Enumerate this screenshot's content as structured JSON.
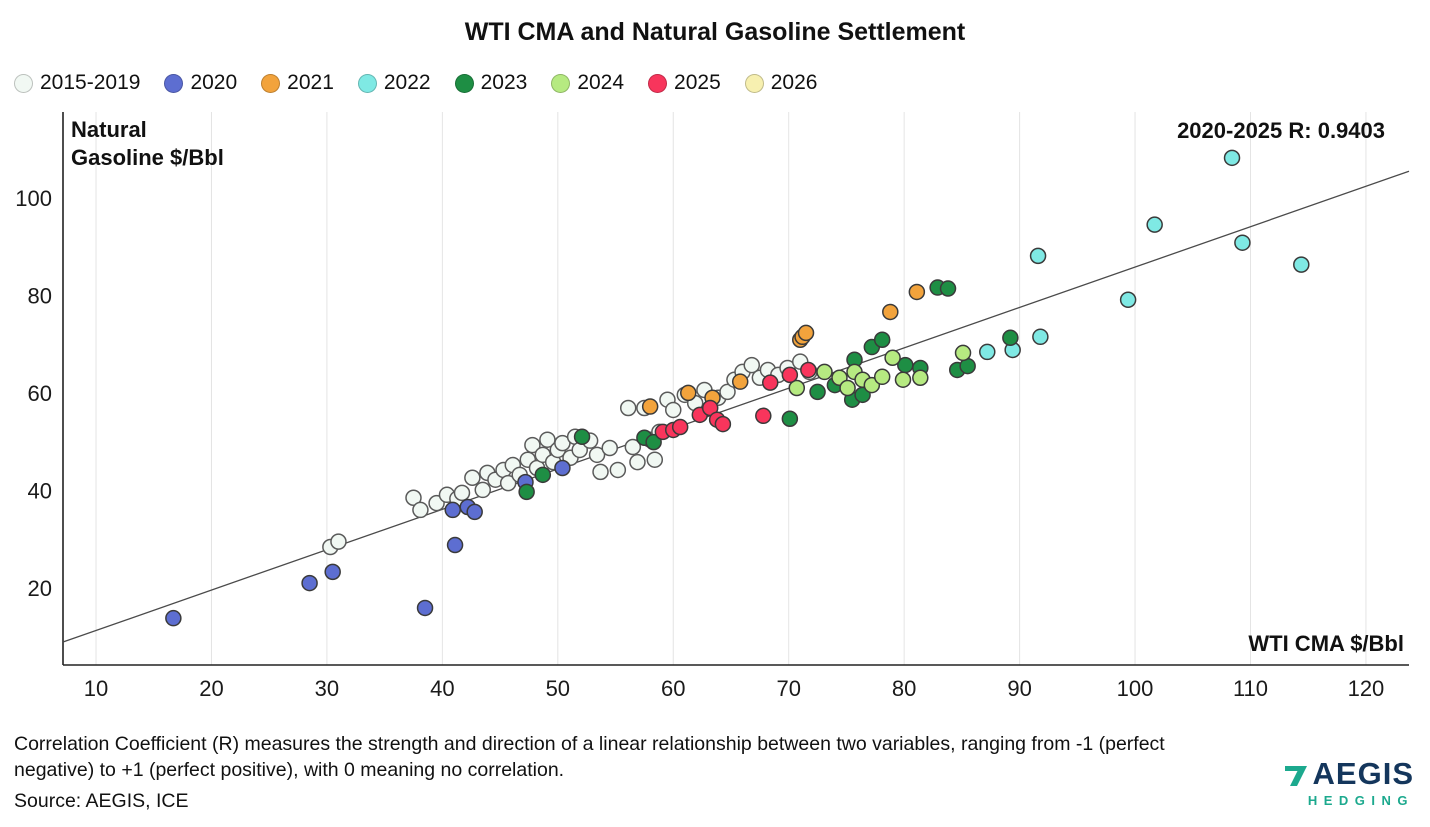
{
  "header": {
    "title": "WTI CMA and Natural Gasoline Settlement"
  },
  "annotation": "2020-2025 R: 0.9403",
  "ylabel_text": "Natural\nGasoline $/Bbl",
  "xlabel_text": "WTI CMA $/Bbl",
  "footnote": "Correlation Coefficient (R) measures the strength and direction of a linear relationship between two variables, ranging from -1 (perfect negative) to +1 (perfect positive), with 0 meaning no correlation.",
  "source": "Source: AEGIS, ICE",
  "logo": {
    "name": "AEGIS",
    "sub": "HEDGING",
    "navy": "#14365c",
    "teal": "#1ca98e"
  },
  "chart_data": {
    "type": "scatter",
    "title": "WTI CMA and Natural Gasoline Settlement",
    "xlabel": "WTI CMA $/Bbl",
    "ylabel": "Natural Gasoline $/Bbl",
    "annotation": "2020-2025 R: 0.9403",
    "x_ticks": [
      10,
      20,
      30,
      40,
      50,
      60,
      70,
      80,
      90,
      100,
      110,
      120
    ],
    "y_ticks": [
      20,
      40,
      60,
      80,
      100
    ],
    "xlim": [
      7.14,
      123.73
    ],
    "ylim": [
      4.2,
      117.6
    ],
    "grid": "vertical",
    "legend_position": "top-left",
    "marker_radius": 7.5,
    "trendline": {
      "slope": 0.828,
      "intercept": 3.0,
      "color": "#4a4a4a"
    },
    "series": [
      {
        "name": "2015-2019",
        "color": "#f1f8f3",
        "stroke": "#5a5a5a",
        "points": [
          [
            30.3,
            28.4
          ],
          [
            31,
            29.5
          ],
          [
            37.5,
            38.5
          ],
          [
            38.1,
            36
          ],
          [
            39.5,
            37.4
          ],
          [
            40.4,
            39.1
          ],
          [
            41.3,
            38.3
          ],
          [
            41.7,
            39.5
          ],
          [
            42.6,
            42.6
          ],
          [
            43.5,
            40.1
          ],
          [
            43.9,
            43.6
          ],
          [
            44.6,
            42.2
          ],
          [
            45.3,
            44.2
          ],
          [
            45.7,
            41.5
          ],
          [
            46.1,
            45.2
          ],
          [
            46.7,
            43.2
          ],
          [
            47.4,
            46.3
          ],
          [
            47.8,
            49.3
          ],
          [
            48.2,
            44.6
          ],
          [
            48.7,
            47.3
          ],
          [
            49.1,
            50.4
          ],
          [
            49.6,
            45.8
          ],
          [
            50,
            48.3
          ],
          [
            50.4,
            49.7
          ],
          [
            51.1,
            46.7
          ],
          [
            51.5,
            51
          ],
          [
            51.9,
            48.3
          ],
          [
            52.8,
            50.2
          ],
          [
            53.4,
            47.3
          ],
          [
            53.7,
            43.8
          ],
          [
            54.5,
            48.7
          ],
          [
            55.2,
            44.2
          ],
          [
            56.1,
            56.9
          ],
          [
            56.5,
            48.9
          ],
          [
            56.9,
            45.8
          ],
          [
            57.5,
            56.9
          ],
          [
            58,
            50.4
          ],
          [
            58.4,
            46.3
          ],
          [
            58.8,
            52
          ],
          [
            59.5,
            58.6
          ],
          [
            60,
            56.5
          ],
          [
            61,
            59.6
          ],
          [
            61.9,
            57.9
          ],
          [
            62.7,
            60.6
          ],
          [
            63.9,
            59
          ],
          [
            64.7,
            60.2
          ],
          [
            65.3,
            62.7
          ],
          [
            66,
            64.3
          ],
          [
            66.8,
            65.7
          ],
          [
            67.5,
            63.1
          ],
          [
            68.2,
            64.7
          ],
          [
            69.1,
            63.7
          ],
          [
            69.9,
            65.1
          ],
          [
            71,
            66.4
          ],
          [
            71.8,
            64.3
          ]
        ]
      },
      {
        "name": "2020",
        "color": "#5d6ed1",
        "stroke": "#3a3a3a",
        "points": [
          [
            16.7,
            13.8
          ],
          [
            28.5,
            21
          ],
          [
            30.5,
            23.3
          ],
          [
            38.5,
            15.9
          ],
          [
            40.9,
            36
          ],
          [
            41.1,
            28.8
          ],
          [
            42.2,
            36.6
          ],
          [
            42.8,
            35.6
          ],
          [
            47.2,
            41.7
          ],
          [
            50.4,
            44.6
          ]
        ]
      },
      {
        "name": "2021",
        "color": "#f2a33c",
        "stroke": "#3a3a3a",
        "points": [
          [
            58,
            57.2
          ],
          [
            61.3,
            60
          ],
          [
            63.4,
            59
          ],
          [
            65.8,
            62.3
          ],
          [
            71,
            70.9
          ],
          [
            71.2,
            71.5
          ],
          [
            71.5,
            72.3
          ],
          [
            78.8,
            76.6
          ],
          [
            81.1,
            80.7
          ]
        ]
      },
      {
        "name": "2022",
        "color": "#7fe9e4",
        "stroke": "#3a3a3a",
        "points": [
          [
            87.2,
            68.4
          ],
          [
            89.4,
            68.8
          ],
          [
            91.8,
            71.5
          ],
          [
            91.6,
            88.1
          ],
          [
            99.4,
            79.1
          ],
          [
            101.7,
            94.5
          ],
          [
            108.4,
            108.2
          ],
          [
            109.3,
            90.8
          ],
          [
            114.4,
            86.3
          ]
        ]
      },
      {
        "name": "2023",
        "color": "#1e8e44",
        "stroke": "#3a3a3a",
        "points": [
          [
            47.3,
            39.7
          ],
          [
            48.7,
            43.2
          ],
          [
            52.1,
            51
          ],
          [
            57.5,
            50.8
          ],
          [
            58.3,
            49.9
          ],
          [
            70.1,
            54.7
          ],
          [
            72.5,
            60.2
          ],
          [
            74,
            61.6
          ],
          [
            75.5,
            58.6
          ],
          [
            76.4,
            59.6
          ],
          [
            75.7,
            66.8
          ],
          [
            77.2,
            69.4
          ],
          [
            78.1,
            70.9
          ],
          [
            80.1,
            65.7
          ],
          [
            81.4,
            65.1
          ],
          [
            82.9,
            81.6
          ],
          [
            83.8,
            81.4
          ],
          [
            84.6,
            64.7
          ],
          [
            85.5,
            65.5
          ],
          [
            89.2,
            71.3
          ]
        ]
      },
      {
        "name": "2024",
        "color": "#b6ea81",
        "stroke": "#3a3a3a",
        "points": [
          [
            70.7,
            61
          ],
          [
            73.1,
            64.3
          ],
          [
            74.4,
            63.1
          ],
          [
            75.1,
            61
          ],
          [
            75.7,
            64.3
          ],
          [
            76.4,
            62.7
          ],
          [
            77.2,
            61.6
          ],
          [
            78.1,
            63.3
          ],
          [
            79,
            67.2
          ],
          [
            79.9,
            62.7
          ],
          [
            81.4,
            63.1
          ],
          [
            85.1,
            68.2
          ]
        ]
      },
      {
        "name": "2025",
        "color": "#f8355c",
        "stroke": "#3a3a3a",
        "points": [
          [
            59.1,
            52
          ],
          [
            60,
            52.4
          ],
          [
            60.6,
            53
          ],
          [
            62.3,
            55.5
          ],
          [
            63.2,
            56.9
          ],
          [
            63.8,
            54.5
          ],
          [
            64.3,
            53.6
          ],
          [
            67.8,
            55.3
          ],
          [
            68.4,
            62.1
          ],
          [
            70.1,
            63.7
          ],
          [
            71.7,
            64.7
          ]
        ]
      },
      {
        "name": "2026",
        "color": "#f7f0b0",
        "stroke": "#3a3a3a",
        "points": []
      }
    ]
  }
}
